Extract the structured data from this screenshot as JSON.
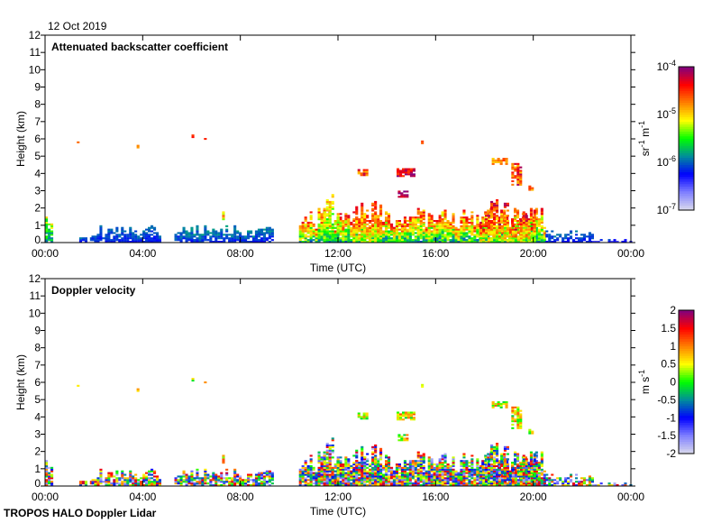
{
  "date_label": "12 Oct 2019",
  "footer": "TROPOS HALO Doppler Lidar",
  "colormap": [
    "#dcdcec",
    "#8080ff",
    "#0000ff",
    "#008c9c",
    "#00ff00",
    "#ffff00",
    "#ff8000",
    "#ff0000",
    "#800080"
  ],
  "chart_data": [
    {
      "type": "heatmap",
      "title": "Attenuated backscatter coefficient",
      "xlabel": "Time (UTC)",
      "ylabel": "Height (km)",
      "xlim": [
        0,
        24
      ],
      "ylim": [
        0,
        12
      ],
      "xticks": [
        "00:00",
        "04:00",
        "08:00",
        "12:00",
        "16:00",
        "20:00",
        "00:00"
      ],
      "yticks": [
        "0",
        "1",
        "2",
        "3",
        "4",
        "5",
        "6",
        "7",
        "8",
        "9",
        "10",
        "11",
        "12"
      ],
      "colorbar": {
        "label_base": "sr",
        "label_exp1": "-1",
        "label_unit2": " m",
        "label_exp2": "-1",
        "scale": "log",
        "range_log10": [
          -7,
          -4
        ],
        "ticks": [
          {
            "base": "10",
            "exp": "-4"
          },
          {
            "base": "10",
            "exp": "-5"
          },
          {
            "base": "10",
            "exp": "-6"
          },
          {
            "base": "10",
            "exp": "-7"
          }
        ]
      },
      "features_note": "t0,t1 hours UTC; h0,h1 km; value range log10(sr-1 m-1); density",
      "features": [
        [
          0.0,
          0.3,
          0,
          1.5,
          -6.2,
          -5.0,
          0.9
        ],
        [
          1.4,
          1.9,
          0,
          0.45,
          -6.3,
          -5.9,
          0.5
        ],
        [
          1.9,
          4.7,
          0,
          0.95,
          -6.3,
          -5.9,
          0.85
        ],
        [
          5.3,
          9.3,
          0,
          0.95,
          -6.3,
          -5.8,
          0.85
        ],
        [
          7.25,
          7.35,
          1.3,
          1.75,
          -5.5,
          -4.6,
          0.9
        ],
        [
          10.4,
          20.5,
          0,
          2.0,
          -6.1,
          -4.3,
          0.9
        ],
        [
          11.4,
          12.0,
          0,
          3.3,
          -5.9,
          -4.8,
          0.75
        ],
        [
          12.6,
          13.8,
          0,
          2.8,
          -5.6,
          -4.3,
          0.8
        ],
        [
          17.8,
          20.0,
          0,
          2.5,
          -5.6,
          -4.1,
          0.8
        ],
        [
          20.5,
          22.4,
          0,
          0.8,
          -6.3,
          -5.9,
          0.65
        ],
        [
          22.4,
          24.0,
          0,
          0.15,
          -6.5,
          -6.0,
          0.8
        ],
        [
          1.3,
          1.36,
          5.75,
          5.85,
          -4.8,
          -4.6,
          1
        ],
        [
          3.75,
          3.85,
          5.45,
          5.6,
          -4.9,
          -4.6,
          1
        ],
        [
          6.0,
          6.05,
          6.05,
          6.15,
          -4.6,
          -4.4,
          1
        ],
        [
          6.4,
          6.6,
          5.95,
          6.05,
          -4.7,
          -4.4,
          0.8
        ],
        [
          12.8,
          13.2,
          3.85,
          4.15,
          -5.0,
          -4.1,
          0.85
        ],
        [
          14.4,
          15.1,
          3.8,
          4.2,
          -4.6,
          -4.0,
          0.9
        ],
        [
          14.45,
          14.8,
          2.6,
          3.0,
          -4.3,
          -4.0,
          0.9
        ],
        [
          15.4,
          15.5,
          5.7,
          5.85,
          -4.8,
          -4.5,
          1
        ],
        [
          18.3,
          18.9,
          4.5,
          4.8,
          -5.0,
          -4.5,
          0.7
        ],
        [
          19.1,
          19.5,
          3.3,
          4.5,
          -5.0,
          -4.1,
          0.75
        ],
        [
          19.8,
          20.0,
          3.0,
          3.3,
          -5.0,
          -4.5,
          0.8
        ]
      ]
    },
    {
      "type": "heatmap",
      "title": "Doppler velocity",
      "xlabel": "Time (UTC)",
      "ylabel": "Height (km)",
      "xlim": [
        0,
        24
      ],
      "ylim": [
        0,
        12
      ],
      "xticks": [
        "00:00",
        "04:00",
        "08:00",
        "12:00",
        "16:00",
        "20:00",
        "00:00"
      ],
      "yticks": [
        "0",
        "1",
        "2",
        "3",
        "4",
        "5",
        "6",
        "7",
        "8",
        "9",
        "10",
        "11",
        "12"
      ],
      "colorbar": {
        "label_base": "m s",
        "label_exp1": "-1",
        "scale": "linear",
        "range": [
          -2,
          2
        ],
        "ticks": [
          "2",
          "1.5",
          "1",
          "0.5",
          "0",
          "-0.5",
          "-1",
          "-1.5",
          "-2"
        ]
      },
      "velocity_range_bl": [
        -1.8,
        1.8
      ],
      "velocity_range_elevated": [
        -0.2,
        1.2
      ]
    }
  ]
}
